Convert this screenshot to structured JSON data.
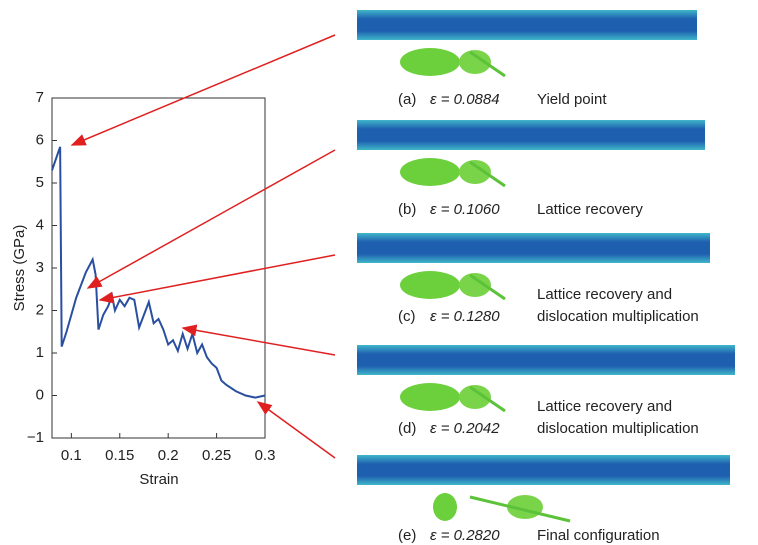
{
  "chart_data": {
    "type": "line",
    "x_label": "Strain",
    "y_label": "Stress (GPa)",
    "x": [
      0.08,
      0.0884,
      0.09,
      0.095,
      0.105,
      0.115,
      0.122,
      0.125,
      0.128,
      0.133,
      0.138,
      0.142,
      0.145,
      0.15,
      0.155,
      0.16,
      0.165,
      0.17,
      0.175,
      0.18,
      0.185,
      0.19,
      0.195,
      0.2,
      0.205,
      0.21,
      0.215,
      0.22,
      0.225,
      0.23,
      0.235,
      0.24,
      0.245,
      0.25,
      0.255,
      0.26,
      0.27,
      0.28,
      0.29,
      0.3
    ],
    "series": [
      {
        "color": "#2a4fa0",
        "values": [
          5.3,
          5.85,
          1.15,
          1.5,
          2.3,
          2.9,
          3.2,
          2.85,
          1.55,
          1.9,
          2.1,
          2.35,
          2.0,
          2.25,
          2.1,
          2.3,
          2.25,
          1.6,
          1.9,
          2.2,
          1.7,
          1.8,
          1.55,
          1.2,
          1.3,
          1.05,
          1.45,
          1.1,
          1.45,
          1.0,
          1.2,
          0.9,
          0.75,
          0.65,
          0.35,
          0.25,
          0.1,
          0.0,
          -0.05,
          0.0
        ]
      }
    ],
    "xlim": [
      0.08,
      0.3
    ],
    "xticks": [
      0.1,
      0.15,
      0.2,
      0.25,
      0.3
    ],
    "ylim": [
      -1,
      7
    ],
    "yticks": [
      {
        "value": -1,
        "label": "−1"
      },
      0,
      1,
      2,
      3,
      4,
      5,
      6,
      7
    ],
    "grid": false
  },
  "panels": [
    {
      "tag": "(a)",
      "strain": "ε = 0.0884",
      "lines": [
        "Yield point"
      ]
    },
    {
      "tag": "(b)",
      "strain": "ε = 0.1060",
      "lines": [
        "Lattice recovery"
      ]
    },
    {
      "tag": "(c)",
      "strain": "ε = 0.1280",
      "lines": [
        "Lattice recovery and",
        "dislocation multiplication"
      ]
    },
    {
      "tag": "(d)",
      "strain": "ε = 0.2042",
      "lines": [
        "Lattice recovery and",
        "dislocation multiplication"
      ]
    },
    {
      "tag": "(e)",
      "strain": "ε = 0.2820",
      "lines": [
        "Final configuration"
      ]
    }
  ]
}
